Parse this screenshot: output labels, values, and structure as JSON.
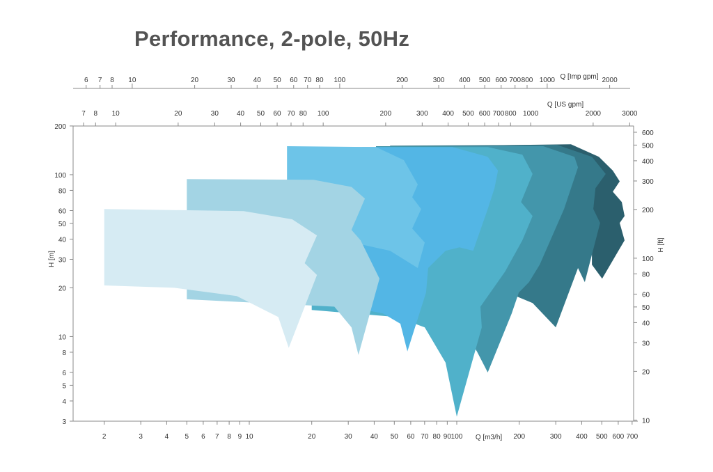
{
  "chart_data": {
    "type": "area",
    "title": "Performance, 2-pole, 50Hz",
    "xlabel": "Q [m3/h]",
    "ylabel_left": "H [m]",
    "ylabel_right": "H [ft]",
    "top_axis_1_label": "Q [Imp gpm]",
    "top_axis_2_label": "Q [US gpm]",
    "x_scale": "log",
    "y_scale": "log",
    "xlim": [
      1.41,
      700
    ],
    "ylim": [
      3,
      200
    ],
    "x_ticks": [
      2,
      3,
      4,
      5,
      6,
      7,
      8,
      9,
      10,
      20,
      30,
      40,
      50,
      60,
      70,
      80,
      90,
      100,
      200,
      300,
      400,
      500,
      600,
      700
    ],
    "y_ticks_m": [
      3,
      4,
      5,
      6,
      8,
      10,
      20,
      30,
      40,
      50,
      60,
      80,
      100,
      200
    ],
    "y_ticks_ft": [
      10,
      20,
      30,
      40,
      50,
      60,
      80,
      100,
      200,
      300,
      400,
      500,
      600
    ],
    "us_gpm_ticks": [
      7,
      8,
      10,
      20,
      30,
      40,
      50,
      60,
      70,
      80,
      100,
      200,
      300,
      400,
      500,
      600,
      700,
      800,
      1000,
      2000,
      3000
    ],
    "imp_gpm_ticks": [
      6,
      7,
      8,
      10,
      20,
      30,
      40,
      50,
      60,
      70,
      80,
      100,
      200,
      300,
      400,
      500,
      600,
      700,
      800,
      1000,
      2000
    ],
    "series": [
      {
        "name": "range-9",
        "color": "#2b5f6d",
        "polygon": [
          [
            64.9,
            150
          ],
          [
            355,
            154
          ],
          [
            484,
            129
          ],
          [
            565,
            106
          ],
          [
            610,
            91
          ],
          [
            565,
            78.5
          ],
          [
            624,
            67.8
          ],
          [
            644,
            55.6
          ],
          [
            610,
            50.3
          ],
          [
            644,
            39.3
          ],
          [
            502,
            22.8
          ],
          [
            448,
            27.8
          ],
          [
            448,
            37.4
          ],
          [
            64.9,
            37.4
          ]
        ]
      },
      {
        "name": "range-8",
        "color": "#35798a",
        "polygon": [
          [
            47.7,
            151
          ],
          [
            304,
            153
          ],
          [
            448,
            129
          ],
          [
            522,
            101
          ],
          [
            466,
            82.5
          ],
          [
            455,
            61.3
          ],
          [
            491,
            50.3
          ],
          [
            414,
            21.7
          ],
          [
            384,
            26.5
          ],
          [
            300,
            11.4
          ],
          [
            232,
            16.1
          ],
          [
            47.7,
            37.4
          ]
        ]
      },
      {
        "name": "range-7",
        "color": "#4396ab",
        "polygon": [
          [
            40.8,
            150
          ],
          [
            261,
            150
          ],
          [
            369,
            129
          ],
          [
            384,
            111
          ],
          [
            329,
            61.3
          ],
          [
            251,
            27.8
          ],
          [
            223,
            21.7
          ],
          [
            199,
            18.7
          ],
          [
            184,
            13.9
          ],
          [
            141,
            6.0
          ],
          [
            125,
            8.1
          ],
          [
            103,
            12.0
          ],
          [
            40.8,
            22.8
          ]
        ]
      },
      {
        "name": "range-6",
        "color": "#50b1ca",
        "polygon": [
          [
            35,
            148
          ],
          [
            141,
            148
          ],
          [
            207,
            133
          ],
          [
            232,
            101
          ],
          [
            204,
            67.8
          ],
          [
            232,
            55.6
          ],
          [
            207,
            39.3
          ],
          [
            171,
            25.2
          ],
          [
            130,
            15.3
          ],
          [
            132,
            11.4
          ],
          [
            100,
            3.2
          ],
          [
            88.3,
            6.9
          ],
          [
            70.1,
            11.4
          ],
          [
            51.4,
            13.2
          ],
          [
            20,
            14.6
          ],
          [
            20,
            17.0
          ],
          [
            35,
            18.7
          ]
        ]
      },
      {
        "name": "range-5",
        "color": "#53b6e5",
        "polygon": [
          [
            30,
            148
          ],
          [
            95.5,
            148
          ],
          [
            141,
            129
          ],
          [
            158,
            106
          ],
          [
            152,
            82.5
          ],
          [
            141,
            61.3
          ],
          [
            130,
            45.6
          ],
          [
            120,
            33.9
          ],
          [
            103,
            35.6
          ],
          [
            88.3,
            33.9
          ],
          [
            72.8,
            26.5
          ],
          [
            71.1,
            18.7
          ],
          [
            57.8,
            8.1
          ],
          [
            53.5,
            12.0
          ],
          [
            44.1,
            13.9
          ],
          [
            30,
            15.3
          ]
        ]
      },
      {
        "name": "range-4",
        "color": "#6dc4e8",
        "polygon": [
          [
            15.2,
            150
          ],
          [
            40.8,
            148
          ],
          [
            55.6,
            123
          ],
          [
            64.9,
            87
          ],
          [
            61,
            72.6
          ],
          [
            67.4,
            61.3
          ],
          [
            61,
            46.5
          ],
          [
            70.1,
            38.1
          ],
          [
            64.9,
            26.5
          ],
          [
            47.7,
            33.9
          ],
          [
            33.6,
            37.4
          ],
          [
            15.2,
            37.4
          ]
        ]
      },
      {
        "name": "range-3",
        "color": "#a3d4e4",
        "polygon": [
          [
            5,
            94
          ],
          [
            20.4,
            93
          ],
          [
            31.1,
            84
          ],
          [
            36.1,
            71.2
          ],
          [
            31.1,
            45.6
          ],
          [
            34.4,
            39.3
          ],
          [
            42.4,
            22.8
          ],
          [
            33.6,
            7.7
          ],
          [
            31.1,
            11.4
          ],
          [
            25.7,
            15.3
          ],
          [
            5,
            17
          ]
        ]
      },
      {
        "name": "range-2",
        "color": "#d6ebf3",
        "polygon": [
          [
            2,
            61.3
          ],
          [
            9.4,
            59.6
          ],
          [
            16.1,
            53
          ],
          [
            21.2,
            42.1
          ],
          [
            18.5,
            28.4
          ],
          [
            21.2,
            24
          ],
          [
            15.5,
            8.5
          ],
          [
            13.8,
            13.2
          ],
          [
            8.7,
            17.8
          ],
          [
            4.35,
            20
          ],
          [
            2,
            20.7
          ]
        ]
      }
    ]
  }
}
